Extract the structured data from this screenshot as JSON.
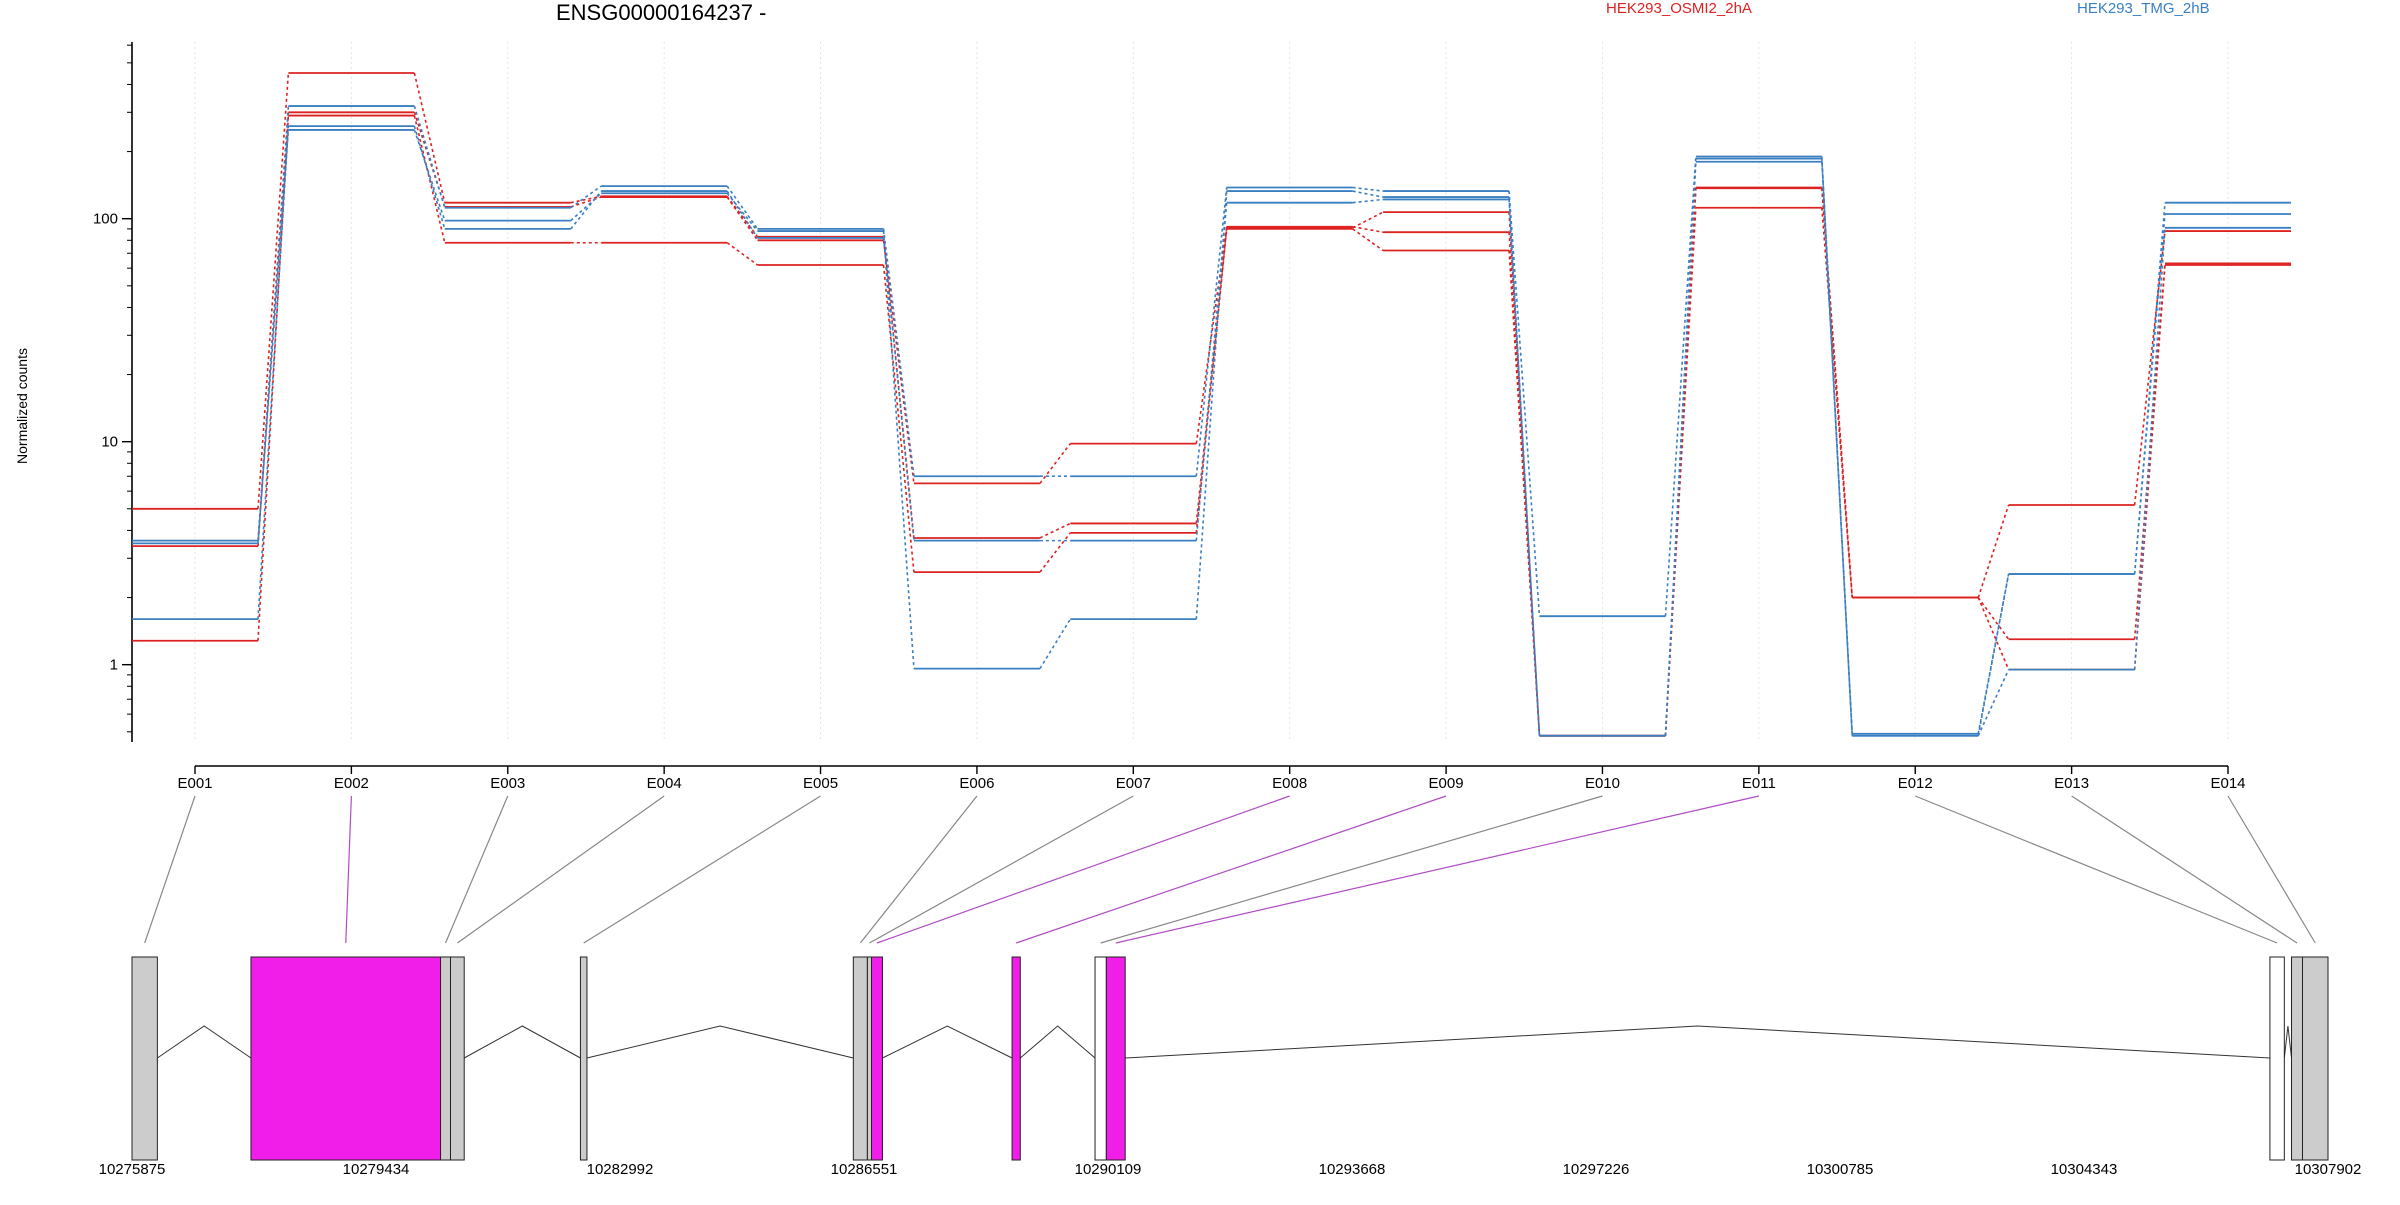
{
  "chart_data": [
    {
      "type": "line",
      "title": "ENSG00000164237 -",
      "xlabel": "",
      "ylabel": "Normalized counts",
      "y_scale": "log",
      "ylim": [
        0.45,
        620
      ],
      "y_ticks": [
        1,
        10,
        100
      ],
      "y_tick_labels": [
        "1",
        "10",
        "100"
      ],
      "grid": "vertical dotted lines at each exon",
      "legend_placement": "top",
      "categories": [
        "E001",
        "E002",
        "E003",
        "E004",
        "E005",
        "E006",
        "E007",
        "E008",
        "E009",
        "E010",
        "E011",
        "E012",
        "E013",
        "E014"
      ],
      "series": [
        {
          "name": "HEK293_OSMI2_2hA",
          "color": "#dd2222",
          "values": [
            5.0,
            450,
            118,
            126,
            83,
            3.7,
            4.3,
            91,
            107,
            0.48,
            137,
            2.0,
            5.2,
            88
          ]
        },
        {
          "color": "#dd2222",
          "values": [
            3.4,
            300,
            113,
            125,
            80,
            6.5,
            9.8,
            92,
            87,
            0.48,
            138,
            2.0,
            1.3,
            63
          ]
        },
        {
          "color": "#dd2222",
          "values": [
            1.28,
            290,
            78,
            78,
            62,
            2.6,
            3.9,
            90,
            72,
            0.48,
            112,
            2.0,
            0.95,
            62
          ]
        },
        {
          "name": "HEK293_TMG_2hB",
          "color": "#3a7fc1",
          "values": [
            3.6,
            320,
            112,
            140,
            90,
            7.0,
            7.0,
            138,
            133,
            1.65,
            190,
            0.49,
            2.55,
            118
          ]
        },
        {
          "color": "#3a7fc1",
          "values": [
            1.6,
            260,
            90,
            133,
            82,
            3.6,
            3.6,
            118,
            122,
            0.48,
            180,
            0.48,
            2.55,
            105
          ]
        },
        {
          "color": "#3a7fc1",
          "values": [
            3.5,
            250,
            98,
            130,
            88,
            0.96,
            1.6,
            133,
            125,
            0.48,
            186,
            0.48,
            0.95,
            91
          ]
        }
      ]
    },
    {
      "type": "gene-model",
      "x_tick_labels": [
        "10275875",
        "10279434",
        "10282992",
        "10286551",
        "10290109",
        "10293668",
        "10297226",
        "10300785",
        "10304343",
        "10307902"
      ],
      "x_ticks": [
        10275875,
        10279434,
        10282992,
        10286551,
        10290109,
        10293668,
        10297226,
        10300785,
        10304343,
        10307902
      ],
      "xlim": [
        10275875,
        10307902
      ],
      "exons": [
        {
          "id": "E001",
          "start": 10275875,
          "end": 10276245,
          "highlight": false
        },
        {
          "id": "E002",
          "start": 10277610,
          "end": 10280375,
          "highlight": true
        },
        {
          "id": "E003",
          "start": 10280375,
          "end": 10280520,
          "highlight": false
        },
        {
          "id": "E004",
          "start": 10280520,
          "end": 10280720,
          "highlight": false
        },
        {
          "id": "E005",
          "start": 10282415,
          "end": 10282510,
          "highlight": false
        },
        {
          "id": "E006",
          "start": 10286395,
          "end": 10286600,
          "highlight": false
        },
        {
          "id": "E007",
          "start": 10286600,
          "end": 10286660,
          "highlight": false
        },
        {
          "id": "E008",
          "start": 10286660,
          "end": 10286820,
          "highlight": true
        },
        {
          "id": "E009",
          "start": 10288710,
          "end": 10288830,
          "highlight": true
        },
        {
          "id": "E010",
          "start": 10289920,
          "end": 10290085,
          "highlight": false
        },
        {
          "id": "E011",
          "start": 10290085,
          "end": 10290360,
          "highlight": true
        },
        {
          "id": "E012",
          "start": 10307055,
          "end": 10307265,
          "highlight": false
        },
        {
          "id": "E013",
          "start": 10307370,
          "end": 10307530,
          "highlight": false
        },
        {
          "id": "E014",
          "start": 10307530,
          "end": 10307902,
          "highlight": false
        }
      ],
      "colors": {
        "exon": "#cccccc",
        "highlight": "#f01ee8",
        "utr": "#ffffff",
        "connector": "#888888",
        "highlight_connector": "#b04cc4"
      }
    }
  ]
}
